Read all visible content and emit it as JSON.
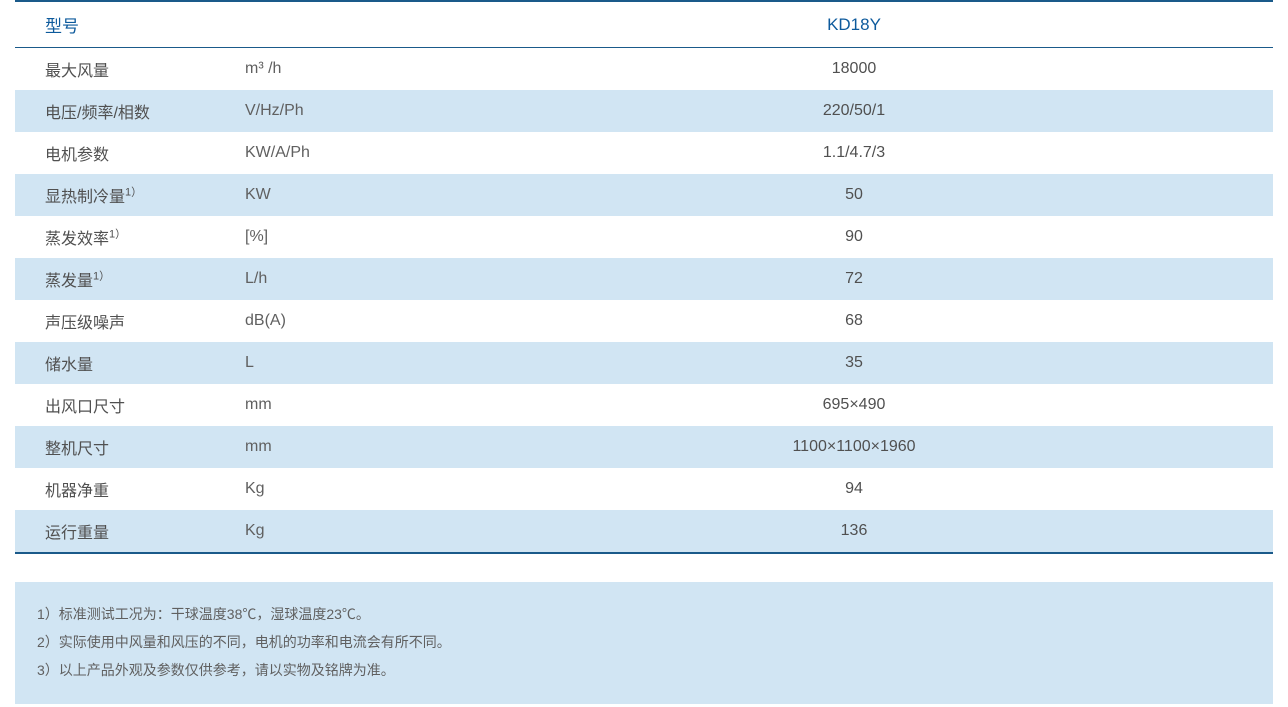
{
  "colors": {
    "header_text": "#0d5a9c",
    "body_text": "#505050",
    "border": "#1a5a8a",
    "alt_row_bg": "#d1e5f3",
    "notes_bg": "#d1e5f3",
    "page_bg": "#ffffff"
  },
  "table": {
    "header": {
      "label": "型号",
      "value": "KD18Y"
    },
    "rows": [
      {
        "label": "最大风量",
        "sup": "",
        "unit": "m³ /h",
        "value": "18000"
      },
      {
        "label": "电压/频率/相数",
        "sup": "",
        "unit": "V/Hz/Ph",
        "value": "220/50/1"
      },
      {
        "label": "电机参数",
        "sup": "",
        "unit": "KW/A/Ph",
        "value": "1.1/4.7/3"
      },
      {
        "label": "显热制冷量",
        "sup": "1）",
        "unit": "KW",
        "value": "50"
      },
      {
        "label": "蒸发效率",
        "sup": "1）",
        "unit": "[%]",
        "value": "90"
      },
      {
        "label": "蒸发量",
        "sup": "1）",
        "unit": "L/h",
        "value": "72"
      },
      {
        "label": "声压级噪声",
        "sup": "",
        "unit": "dB(A)",
        "value": "68"
      },
      {
        "label": "储水量",
        "sup": "",
        "unit": "L",
        "value": "35"
      },
      {
        "label": "出风口尺寸",
        "sup": "",
        "unit": "mm",
        "value": "695×490"
      },
      {
        "label": "整机尺寸",
        "sup": "",
        "unit": "mm",
        "value": "1100×1100×1960"
      },
      {
        "label": "机器净重",
        "sup": "",
        "unit": "Kg",
        "value": "94"
      },
      {
        "label": "运行重量",
        "sup": "",
        "unit": "Kg",
        "value": "136"
      }
    ]
  },
  "notes": [
    "1）标准测试工况为：干球温度38℃，湿球温度23℃。",
    "2）实际使用中风量和风压的不同，电机的功率和电流会有所不同。",
    "3）以上产品外观及参数仅供参考，请以实物及铭牌为准。"
  ]
}
